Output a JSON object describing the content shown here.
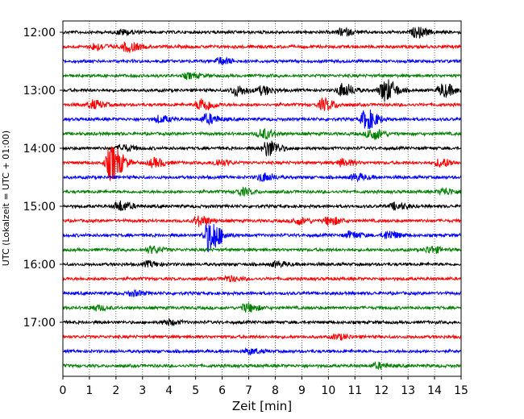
{
  "chart_data": {
    "type": "line",
    "xlabel": "Zeit  [min]",
    "ylabel": "UTC (Lokalzeit = UTC + 01:00)",
    "xlim": [
      0,
      15
    ],
    "x_ticks": [
      "0",
      "1",
      "2",
      "3",
      "4",
      "5",
      "6",
      "7",
      "8",
      "9",
      "10",
      "11",
      "12",
      "13",
      "14",
      "15"
    ],
    "y_tick_labels": [
      "12:00",
      "13:00",
      "14:00",
      "15:00",
      "16:00",
      "17:00"
    ],
    "grid": "vertical dotted lines at each minute",
    "trace_interval_minutes": 15,
    "trace_colors": [
      "#000000",
      "#ff0000",
      "#0000ff",
      "#008000"
    ],
    "traces": [
      {
        "start": "12:00",
        "color": "#000000",
        "events": [
          [
            13.3,
            6
          ],
          [
            10.5,
            4
          ],
          [
            2.2,
            3
          ]
        ]
      },
      {
        "start": "12:15",
        "color": "#ff0000",
        "events": [
          [
            2.4,
            6
          ],
          [
            1.2,
            4
          ]
        ]
      },
      {
        "start": "12:30",
        "color": "#0000ff",
        "events": [
          [
            5.9,
            4
          ]
        ]
      },
      {
        "start": "12:45",
        "color": "#008000",
        "events": [
          [
            4.7,
            3
          ]
        ]
      },
      {
        "start": "13:00",
        "color": "#000000",
        "events": [
          [
            6.5,
            6
          ],
          [
            10.5,
            8
          ],
          [
            12.1,
            14
          ],
          [
            14.3,
            8
          ],
          [
            7.5,
            5
          ]
        ]
      },
      {
        "start": "13:15",
        "color": "#ff0000",
        "events": [
          [
            1.1,
            5
          ],
          [
            5.2,
            8
          ],
          [
            9.8,
            7
          ]
        ]
      },
      {
        "start": "13:30",
        "color": "#0000ff",
        "events": [
          [
            11.4,
            12
          ],
          [
            5.4,
            6
          ],
          [
            3.6,
            4
          ]
        ]
      },
      {
        "start": "13:45",
        "color": "#008000",
        "events": [
          [
            7.5,
            6
          ],
          [
            11.6,
            7
          ]
        ]
      },
      {
        "start": "14:00",
        "color": "#000000",
        "events": [
          [
            7.7,
            10
          ],
          [
            2.2,
            4
          ]
        ]
      },
      {
        "start": "14:15",
        "color": "#ff0000",
        "events": [
          [
            1.8,
            22
          ],
          [
            3.4,
            5
          ],
          [
            5.8,
            4
          ],
          [
            10.5,
            4
          ],
          [
            14.2,
            5
          ]
        ]
      },
      {
        "start": "14:30",
        "color": "#0000ff",
        "events": [
          [
            7.5,
            5
          ],
          [
            11.0,
            4
          ]
        ]
      },
      {
        "start": "14:45",
        "color": "#008000",
        "events": [
          [
            6.7,
            4
          ],
          [
            14.3,
            4
          ]
        ]
      },
      {
        "start": "15:00",
        "color": "#000000",
        "events": [
          [
            2.1,
            6
          ],
          [
            12.5,
            4
          ]
        ]
      },
      {
        "start": "15:15",
        "color": "#ff0000",
        "events": [
          [
            5.1,
            6
          ],
          [
            10.0,
            5
          ],
          [
            8.8,
            4
          ]
        ]
      },
      {
        "start": "15:30",
        "color": "#0000ff",
        "events": [
          [
            5.5,
            20
          ],
          [
            12.2,
            5
          ],
          [
            10.8,
            4
          ]
        ]
      },
      {
        "start": "15:45",
        "color": "#008000",
        "events": [
          [
            3.3,
            4
          ],
          [
            13.8,
            4
          ]
        ]
      },
      {
        "start": "16:00",
        "color": "#000000",
        "events": [
          [
            3.2,
            3
          ],
          [
            8.0,
            3
          ]
        ]
      },
      {
        "start": "16:15",
        "color": "#ff0000",
        "events": [
          [
            6.2,
            3
          ]
        ]
      },
      {
        "start": "16:30",
        "color": "#0000ff",
        "events": [
          [
            2.6,
            3
          ]
        ]
      },
      {
        "start": "16:45",
        "color": "#008000",
        "events": [
          [
            6.9,
            5
          ],
          [
            1.2,
            3
          ]
        ]
      },
      {
        "start": "17:00",
        "color": "#000000",
        "events": [
          [
            3.9,
            3
          ]
        ]
      },
      {
        "start": "17:15",
        "color": "#ff0000",
        "events": [
          [
            10.3,
            3
          ]
        ]
      },
      {
        "start": "17:30",
        "color": "#0000ff",
        "events": [
          [
            7.0,
            3
          ]
        ]
      },
      {
        "start": "17:45",
        "color": "#008000",
        "events": [
          [
            11.8,
            3
          ]
        ]
      }
    ]
  }
}
